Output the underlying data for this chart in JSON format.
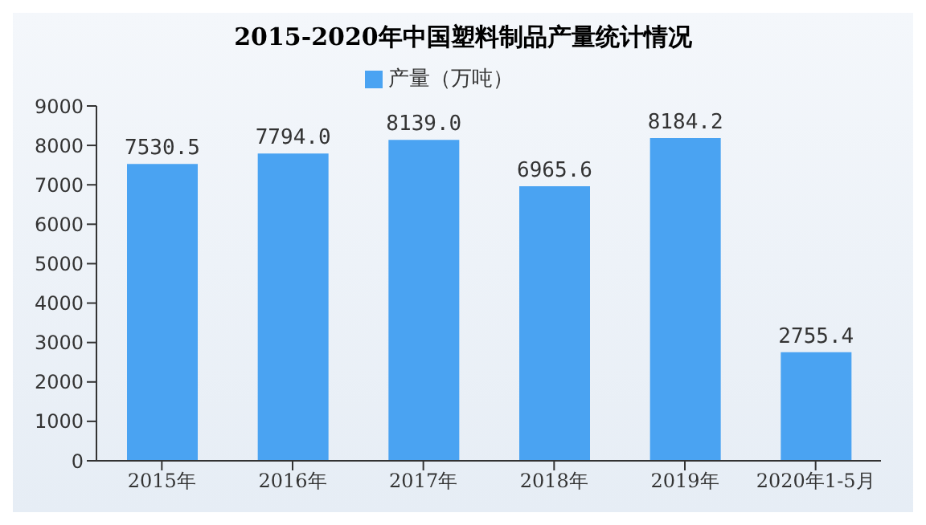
{
  "chart_data": {
    "type": "bar",
    "title": "2015-2020年中国塑料制品产量统计情况",
    "categories": [
      "2015年",
      "2016年",
      "2017年",
      "2018年",
      "2019年",
      "2020年1-5月"
    ],
    "series": [
      {
        "name": "产量（万吨）",
        "color": "#4aa3f2",
        "values": [
          7530.5,
          7794.0,
          8139.0,
          6965.6,
          8184.2,
          2755.4
        ],
        "value_labels": [
          "7530.5",
          "7794.0",
          "8139.0",
          "6965.6",
          "8184.2",
          "2755.4"
        ]
      }
    ],
    "ylim": [
      0,
      9000
    ],
    "yticks": [
      0,
      1000,
      2000,
      3000,
      4000,
      5000,
      6000,
      7000,
      8000,
      9000
    ],
    "grid": false,
    "legend": "top"
  }
}
